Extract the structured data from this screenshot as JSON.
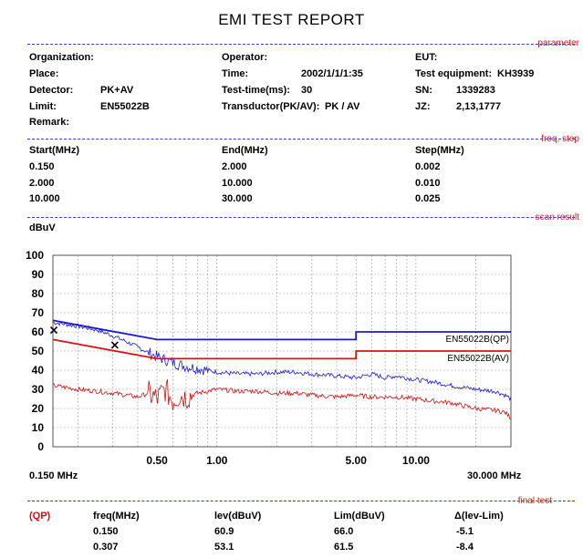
{
  "report": {
    "title": "EMI TEST REPORT"
  },
  "sections": {
    "parameter": "parameter",
    "freq_step": "freq, step",
    "scan_result": "scan result",
    "final_test": "final test"
  },
  "parameter": {
    "col1": [
      {
        "label": "Organization:",
        "value": ""
      },
      {
        "label": "Place:",
        "value": ""
      },
      {
        "label": "Detector:",
        "value": "PK+AV"
      },
      {
        "label": "Limit:",
        "value": "EN55022B"
      },
      {
        "label": "Remark:",
        "value": ""
      }
    ],
    "col2": [
      {
        "label": "Operator:",
        "value": ""
      },
      {
        "label": "Time:",
        "value": "2002/1/1/1:35"
      },
      {
        "label": "Test-time(ms):",
        "value": "30"
      },
      {
        "label": "Transductor(PK/AV):",
        "value": "PK  /  AV"
      }
    ],
    "col3": [
      {
        "label": "EUT:",
        "value": ""
      },
      {
        "label": "Test equipment:",
        "value": "KH3939"
      },
      {
        "label": "SN:",
        "value": "1339283"
      },
      {
        "label": "JZ:",
        "value": "2,13,1777"
      }
    ]
  },
  "freq_table": {
    "headers": [
      "Start(MHz)",
      "End(MHz)",
      "Step(MHz)"
    ],
    "rows": [
      [
        "0.150",
        "2.000",
        "0.002"
      ],
      [
        "2.000",
        "10.000",
        "0.010"
      ],
      [
        "10.000",
        "30.000",
        "0.025"
      ]
    ]
  },
  "chart_data": {
    "type": "line",
    "ylabel": "dBuV",
    "ylim": [
      0,
      100
    ],
    "yticks": [
      "100",
      "90",
      "80",
      "70",
      "60",
      "50",
      "40",
      "30",
      "20",
      "10",
      "0"
    ],
    "xscale": "log",
    "xlim": [
      0.15,
      30
    ],
    "xtick_labels": [
      {
        "label": "0.50",
        "value": 0.5
      },
      {
        "label": "1.00",
        "value": 1.0
      },
      {
        "label": "5.00",
        "value": 5.0
      },
      {
        "label": "10.00",
        "value": 10.0
      }
    ],
    "x_start_label": "0.150 MHz",
    "x_end_label": "30.000 MHz",
    "limits": [
      {
        "name": "EN55022B(QP)",
        "color": "#1a1acc",
        "points": [
          [
            0.15,
            66
          ],
          [
            0.5,
            56
          ],
          [
            5,
            56
          ],
          [
            5,
            60
          ],
          [
            30,
            60
          ]
        ]
      },
      {
        "name": "EN55022B(AV)",
        "color": "#dd1111",
        "points": [
          [
            0.15,
            56
          ],
          [
            0.5,
            46
          ],
          [
            5,
            46
          ],
          [
            5,
            50
          ],
          [
            30,
            50
          ]
        ]
      }
    ],
    "series": [
      {
        "color": "#1a1acc",
        "points": [
          [
            0.15,
            65
          ],
          [
            0.2,
            63
          ],
          [
            0.25,
            61
          ],
          [
            0.3,
            58
          ],
          [
            0.35,
            55
          ],
          [
            0.4,
            52
          ],
          [
            0.5,
            47
          ],
          [
            0.6,
            44
          ],
          [
            0.7,
            42
          ],
          [
            0.8,
            41
          ],
          [
            1.0,
            39
          ],
          [
            1.3,
            38
          ],
          [
            1.6,
            38
          ],
          [
            2,
            39
          ],
          [
            2.5,
            39
          ],
          [
            3,
            38
          ],
          [
            4,
            37
          ],
          [
            5,
            36
          ],
          [
            6,
            38
          ],
          [
            7,
            36
          ],
          [
            8,
            37
          ],
          [
            10,
            35
          ],
          [
            12,
            34
          ],
          [
            15,
            32
          ],
          [
            20,
            30
          ],
          [
            25,
            29
          ],
          [
            28,
            27
          ],
          [
            30,
            25
          ]
        ]
      },
      {
        "color": "#cc1111",
        "points": [
          [
            0.15,
            32
          ],
          [
            0.2,
            30
          ],
          [
            0.25,
            29
          ],
          [
            0.3,
            28
          ],
          [
            0.35,
            27
          ],
          [
            0.4,
            26
          ],
          [
            0.45,
            28
          ],
          [
            0.5,
            25
          ],
          [
            0.55,
            30
          ],
          [
            0.6,
            24
          ],
          [
            0.65,
            27
          ],
          [
            0.7,
            26
          ],
          [
            0.8,
            28
          ],
          [
            1.0,
            30
          ],
          [
            1.3,
            29
          ],
          [
            1.6,
            29
          ],
          [
            2,
            28
          ],
          [
            2.5,
            28
          ],
          [
            3,
            27
          ],
          [
            4,
            26
          ],
          [
            5,
            27
          ],
          [
            6,
            26
          ],
          [
            8,
            26
          ],
          [
            10,
            25
          ],
          [
            12,
            24
          ],
          [
            15,
            23
          ],
          [
            18,
            21
          ],
          [
            20,
            20
          ],
          [
            25,
            19
          ],
          [
            28,
            18
          ],
          [
            30,
            15
          ]
        ]
      }
    ],
    "markers": [
      {
        "x": 0.15,
        "y": 60.9
      },
      {
        "x": 0.307,
        "y": 53.1
      }
    ]
  },
  "final_table": {
    "qp_label": "(QP)",
    "headers": [
      "freq(MHz)",
      "lev(dBuV)",
      "Lim(dBuV)",
      "Δ(lev-Lim)"
    ],
    "rows": [
      [
        "0.150",
        "60.9",
        "66.0",
        "-5.1"
      ],
      [
        "0.307",
        "53.1",
        "61.5",
        "-8.4"
      ]
    ]
  }
}
